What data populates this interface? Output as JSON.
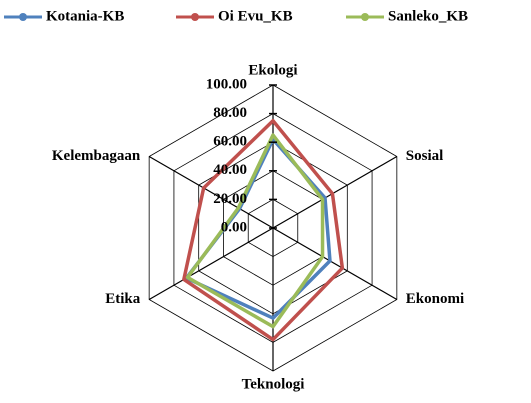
{
  "chart_data": {
    "type": "radar",
    "categories": [
      "Ekologi",
      "Sosial",
      "Ekonomi",
      "Teknologi",
      "Etika",
      "Kelembagaan"
    ],
    "series": [
      {
        "name": "Kotania-KB",
        "color": "#4f81bd",
        "values": [
          62,
          42,
          46,
          63,
          70,
          27
        ]
      },
      {
        "name": "Oi Evu_KB",
        "color": "#c0504d",
        "values": [
          75,
          48,
          56,
          78,
          72,
          56
        ]
      },
      {
        "name": "Sanleko_KB",
        "color": "#9bbb59",
        "values": [
          65,
          40,
          40,
          69,
          69,
          28
        ]
      }
    ],
    "ylim": [
      0,
      100
    ],
    "yticks": [
      {
        "value": 0,
        "label": "0.00"
      },
      {
        "value": 20,
        "label": "20.00"
      },
      {
        "value": 40,
        "label": "40.00"
      },
      {
        "value": 60,
        "label": "60.00"
      },
      {
        "value": 80,
        "label": "80.00"
      },
      {
        "value": 100,
        "label": "100.00"
      }
    ],
    "grid": true
  }
}
